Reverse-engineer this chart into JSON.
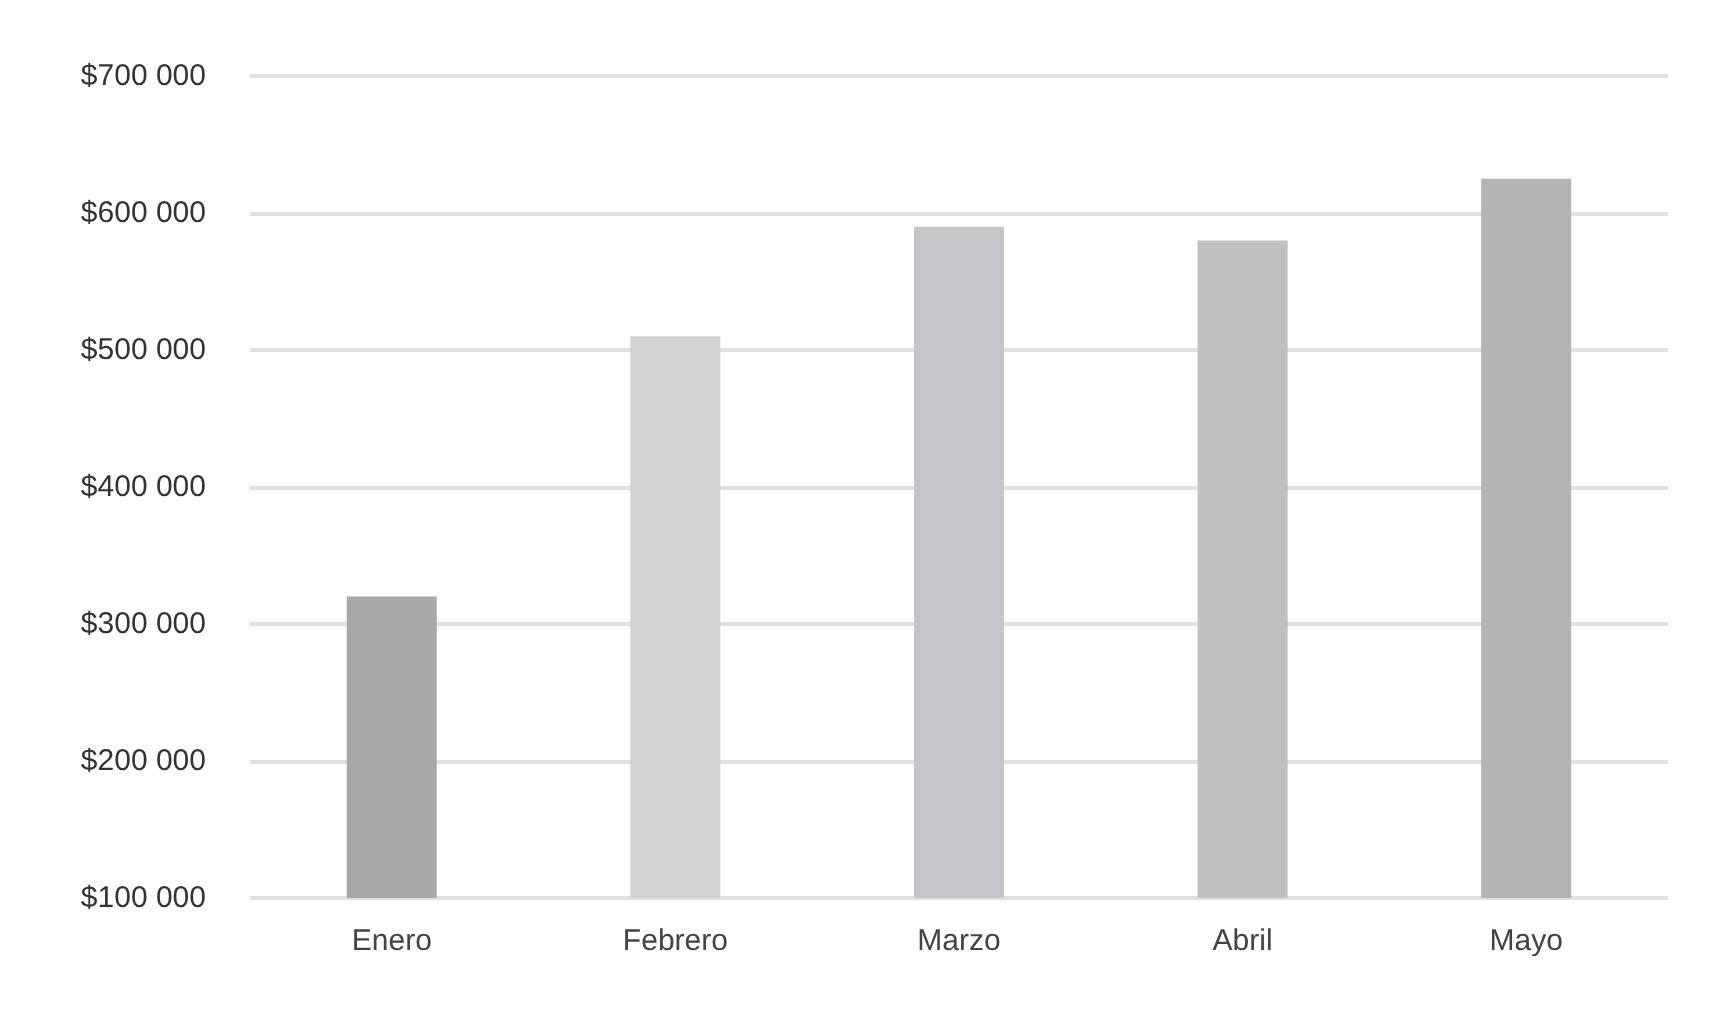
{
  "chart_data": {
    "type": "bar",
    "categories": [
      "Enero",
      "Febrero",
      "Marzo",
      "Abril",
      "Mayo"
    ],
    "values": [
      320000,
      510000,
      590000,
      580000,
      625000
    ],
    "colors": [
      "#a8a8a8",
      "#d2d2d2",
      "#c4c6c9",
      "#c0c0c0",
      "#b4b4b4"
    ],
    "ylim": [
      100000,
      700000
    ],
    "yticks": [
      {
        "value": 100000,
        "label": "$100 000"
      },
      {
        "value": 200000,
        "label": "$200 000"
      },
      {
        "value": 300000,
        "label": "$300 000"
      },
      {
        "value": 400000,
        "label": "$400 000"
      },
      {
        "value": 500000,
        "label": "$500 000"
      },
      {
        "value": 600000,
        "label": "$600 000"
      },
      {
        "value": 700000,
        "label": "$700 000"
      }
    ],
    "grid": true
  }
}
